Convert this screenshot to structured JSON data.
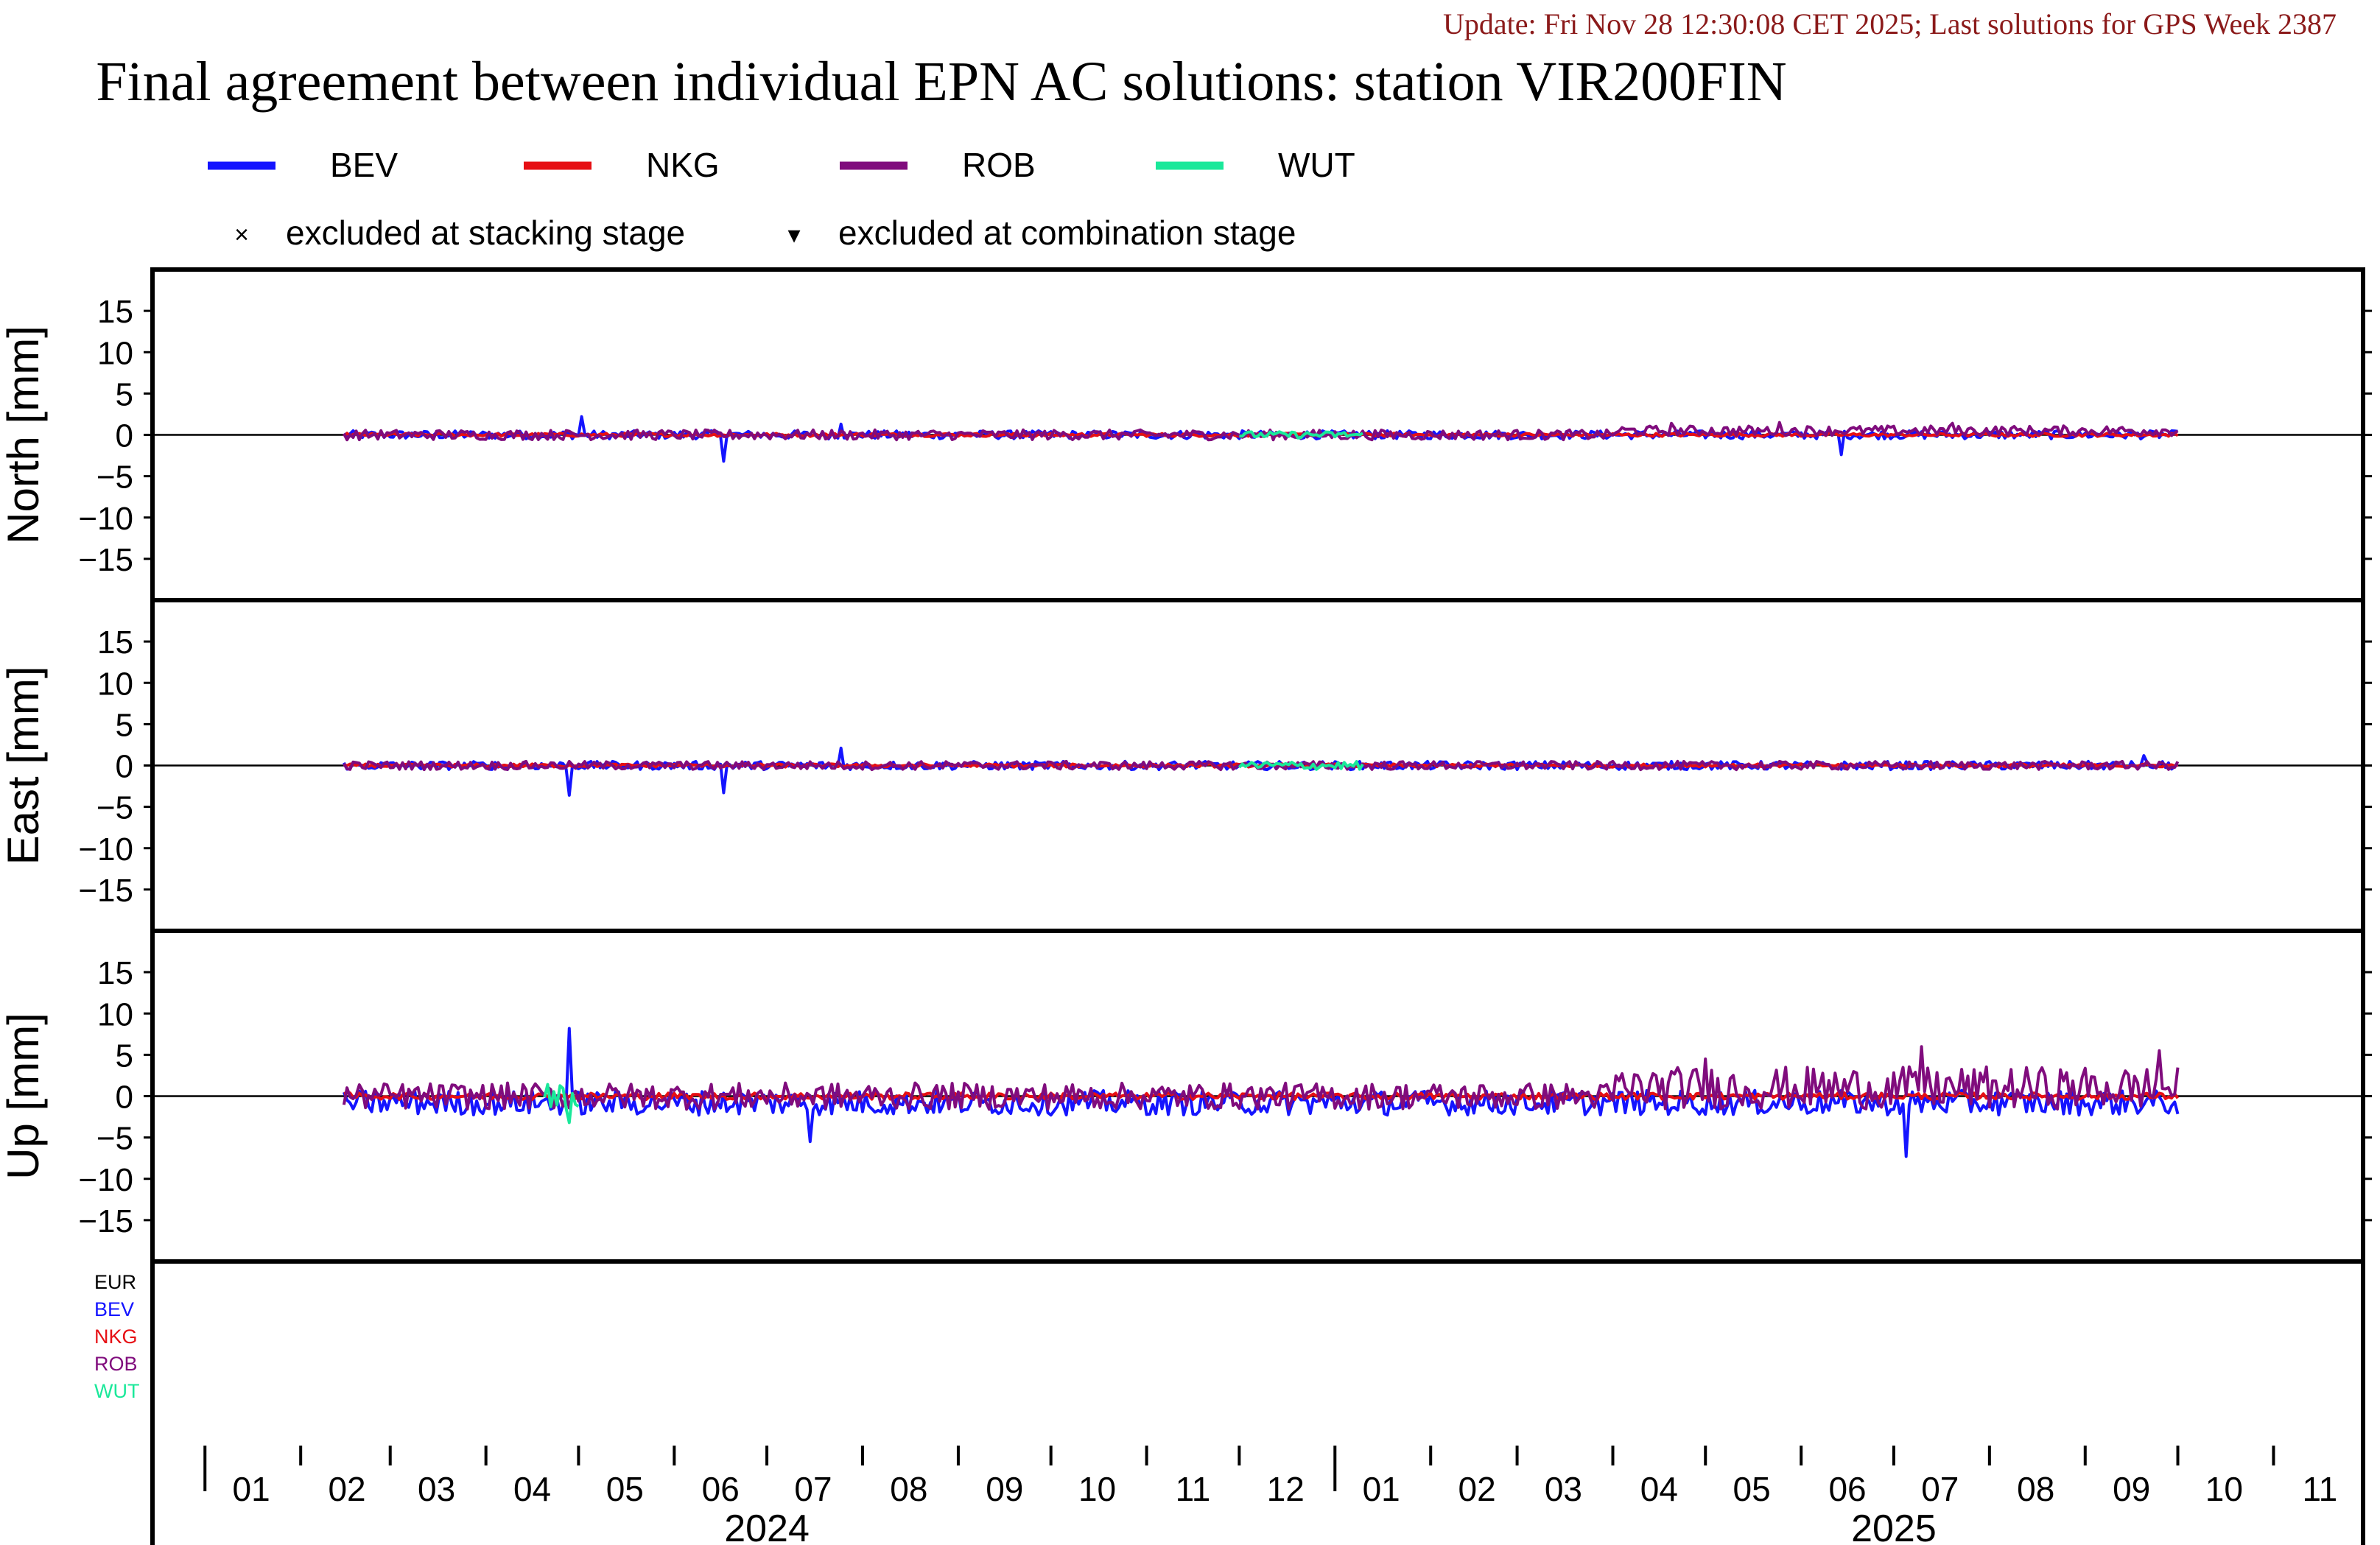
{
  "header": {
    "update_text": "Update: Fri Nov 28 12:30:08 CET 2025; Last solutions for GPS Week 2387",
    "title": "Final agreement between individual EPN AC solutions: station VIR200FIN"
  },
  "legend": {
    "series": [
      {
        "name": "BEV",
        "color": "#1414ff"
      },
      {
        "name": "NKG",
        "color": "#e60f14"
      },
      {
        "name": "ROB",
        "color": "#800c7d"
      },
      {
        "name": "WUT",
        "color": "#1ae89a"
      }
    ],
    "markers": [
      {
        "symbol": "×",
        "label": "excluded at stacking stage"
      },
      {
        "symbol": "▾",
        "label": "excluded at combination stage"
      }
    ]
  },
  "bottom_panel_labels": [
    {
      "text": "EUR",
      "color": "#000000"
    },
    {
      "text": "BEV",
      "color": "#1414ff"
    },
    {
      "text": "NKG",
      "color": "#e60f14"
    },
    {
      "text": "ROB",
      "color": "#800c7d"
    },
    {
      "text": "WUT",
      "color": "#1ae89a"
    }
  ],
  "chart_data": {
    "type": "line",
    "x_unit": "month",
    "x_range": [
      "2023-12-15",
      "2025-11-30"
    ],
    "x_month_ticks": [
      "01",
      "02",
      "03",
      "04",
      "05",
      "06",
      "07",
      "08",
      "09",
      "10",
      "11",
      "12",
      "01",
      "02",
      "03",
      "04",
      "05",
      "06",
      "07",
      "08",
      "09",
      "10",
      "11"
    ],
    "x_year_labels": [
      "2024",
      "2025"
    ],
    "ylim": [
      -20,
      20
    ],
    "y_ticks": [
      15,
      10,
      5,
      0,
      -5,
      -10,
      -15
    ],
    "y_tick_labels": [
      "15",
      "10",
      "5",
      "0",
      "−5",
      "−10",
      "−15"
    ],
    "panels": [
      {
        "ylabel": "North [mm]",
        "series": [
          {
            "name": "BEV",
            "start": "2024-02-15",
            "end": "2025-10-01",
            "amplitude": 0.5,
            "spikes": [
              [
                "2024-05-02",
                2.2
              ],
              [
                "2024-06-17",
                -3.2
              ],
              [
                "2024-07-25",
                1.3
              ],
              [
                "2025-06-14",
                -2.4
              ]
            ]
          },
          {
            "name": "NKG",
            "start": "2024-02-15",
            "end": "2025-10-01",
            "amplitude": 0.2,
            "spikes": []
          },
          {
            "name": "ROB",
            "start": "2024-02-15",
            "end": "2025-10-01",
            "amplitude": 0.6,
            "spikes": [
              [
                "2025-04-20",
                1.4
              ],
              [
                "2025-05-25",
                1.5
              ],
              [
                "2025-07-20",
                1.4
              ]
            ]
          },
          {
            "name": "WUT",
            "start": "2024-12-01",
            "end": "2025-01-10",
            "amplitude": 0.4,
            "spikes": []
          }
        ]
      },
      {
        "ylabel": "East [mm]",
        "series": [
          {
            "name": "BEV",
            "start": "2024-02-15",
            "end": "2025-10-01",
            "amplitude": 0.5,
            "spikes": [
              [
                "2024-04-28",
                -3.6
              ],
              [
                "2024-06-17",
                -3.3
              ],
              [
                "2024-07-25",
                2.1
              ],
              [
                "2025-09-20",
                1.2
              ]
            ]
          },
          {
            "name": "NKG",
            "start": "2024-02-15",
            "end": "2025-10-01",
            "amplitude": 0.2,
            "spikes": []
          },
          {
            "name": "ROB",
            "start": "2024-02-15",
            "end": "2025-10-01",
            "amplitude": 0.5,
            "spikes": []
          },
          {
            "name": "WUT",
            "start": "2024-12-01",
            "end": "2025-01-10",
            "amplitude": 0.5,
            "spikes": []
          }
        ]
      },
      {
        "ylabel": "Up [mm]",
        "series": [
          {
            "name": "BEV",
            "start": "2024-02-15",
            "end": "2025-10-01",
            "amplitude": 1.5,
            "spikes": [
              [
                "2024-04-28",
                8.2
              ],
              [
                "2024-07-15",
                -5.5
              ],
              [
                "2025-07-05",
                -7.3
              ]
            ]
          },
          {
            "name": "NKG",
            "start": "2024-02-15",
            "end": "2025-10-01",
            "amplitude": 0.4,
            "spikes": []
          },
          {
            "name": "ROB",
            "start": "2024-02-15",
            "end": "2025-10-01",
            "amplitude": 1.6,
            "spikes": [
              [
                "2025-05-01",
                4.5
              ],
              [
                "2025-07-10",
                6.0
              ],
              [
                "2025-09-25",
                5.5
              ]
            ]
          },
          {
            "name": "WUT",
            "start": "2024-04-20",
            "end": "2024-05-01",
            "amplitude": 1.5,
            "spikes": [
              [
                "2024-04-28",
                -3.2
              ]
            ]
          }
        ]
      },
      {
        "ylabel": "",
        "series": []
      }
    ]
  }
}
